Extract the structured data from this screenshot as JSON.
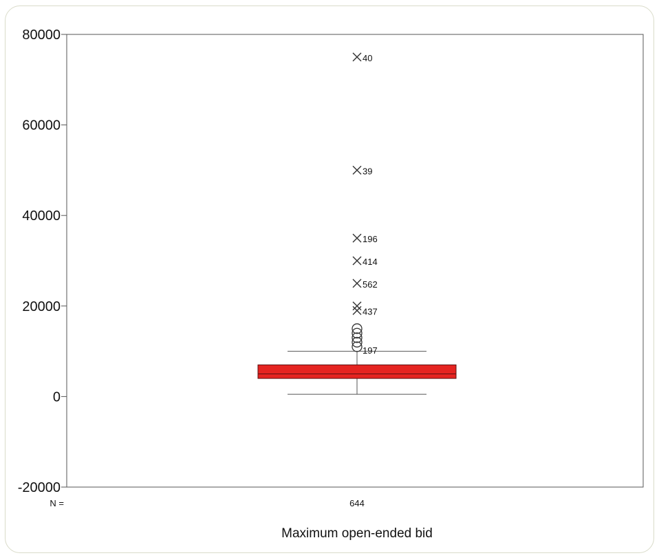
{
  "chart_data": {
    "type": "box",
    "title": "",
    "xlabel": "Maximum open-ended bid",
    "ylabel": "",
    "ylim": [
      -20000,
      80000
    ],
    "y_ticks": [
      "80000",
      "60000",
      "40000",
      "20000",
      "0",
      "-20000"
    ],
    "n_label": "N =",
    "groups": [
      {
        "n": "644",
        "box": {
          "whisker_low": 500,
          "q1": 4000,
          "median": 5000,
          "q3": 7000,
          "whisker_high": 10000
        },
        "extremes": [
          {
            "value": 75000,
            "label": "40"
          },
          {
            "value": 50000,
            "label": "39"
          },
          {
            "value": 35000,
            "label": "196"
          },
          {
            "value": 30000,
            "label": "414"
          },
          {
            "value": 25000,
            "label": "562"
          },
          {
            "value": 20000,
            "label": ""
          },
          {
            "value": 19000,
            "label": "437"
          }
        ],
        "outliers": [
          {
            "value": 15000,
            "label": ""
          },
          {
            "value": 14000,
            "label": ""
          },
          {
            "value": 13000,
            "label": ""
          },
          {
            "value": 12000,
            "label": ""
          },
          {
            "value": 11000,
            "label": "197"
          }
        ]
      }
    ],
    "colors": {
      "box_fill": "#e52421",
      "box_stroke": "#5a1010",
      "axis": "#555555",
      "marker": "#333333"
    },
    "grid": false
  }
}
